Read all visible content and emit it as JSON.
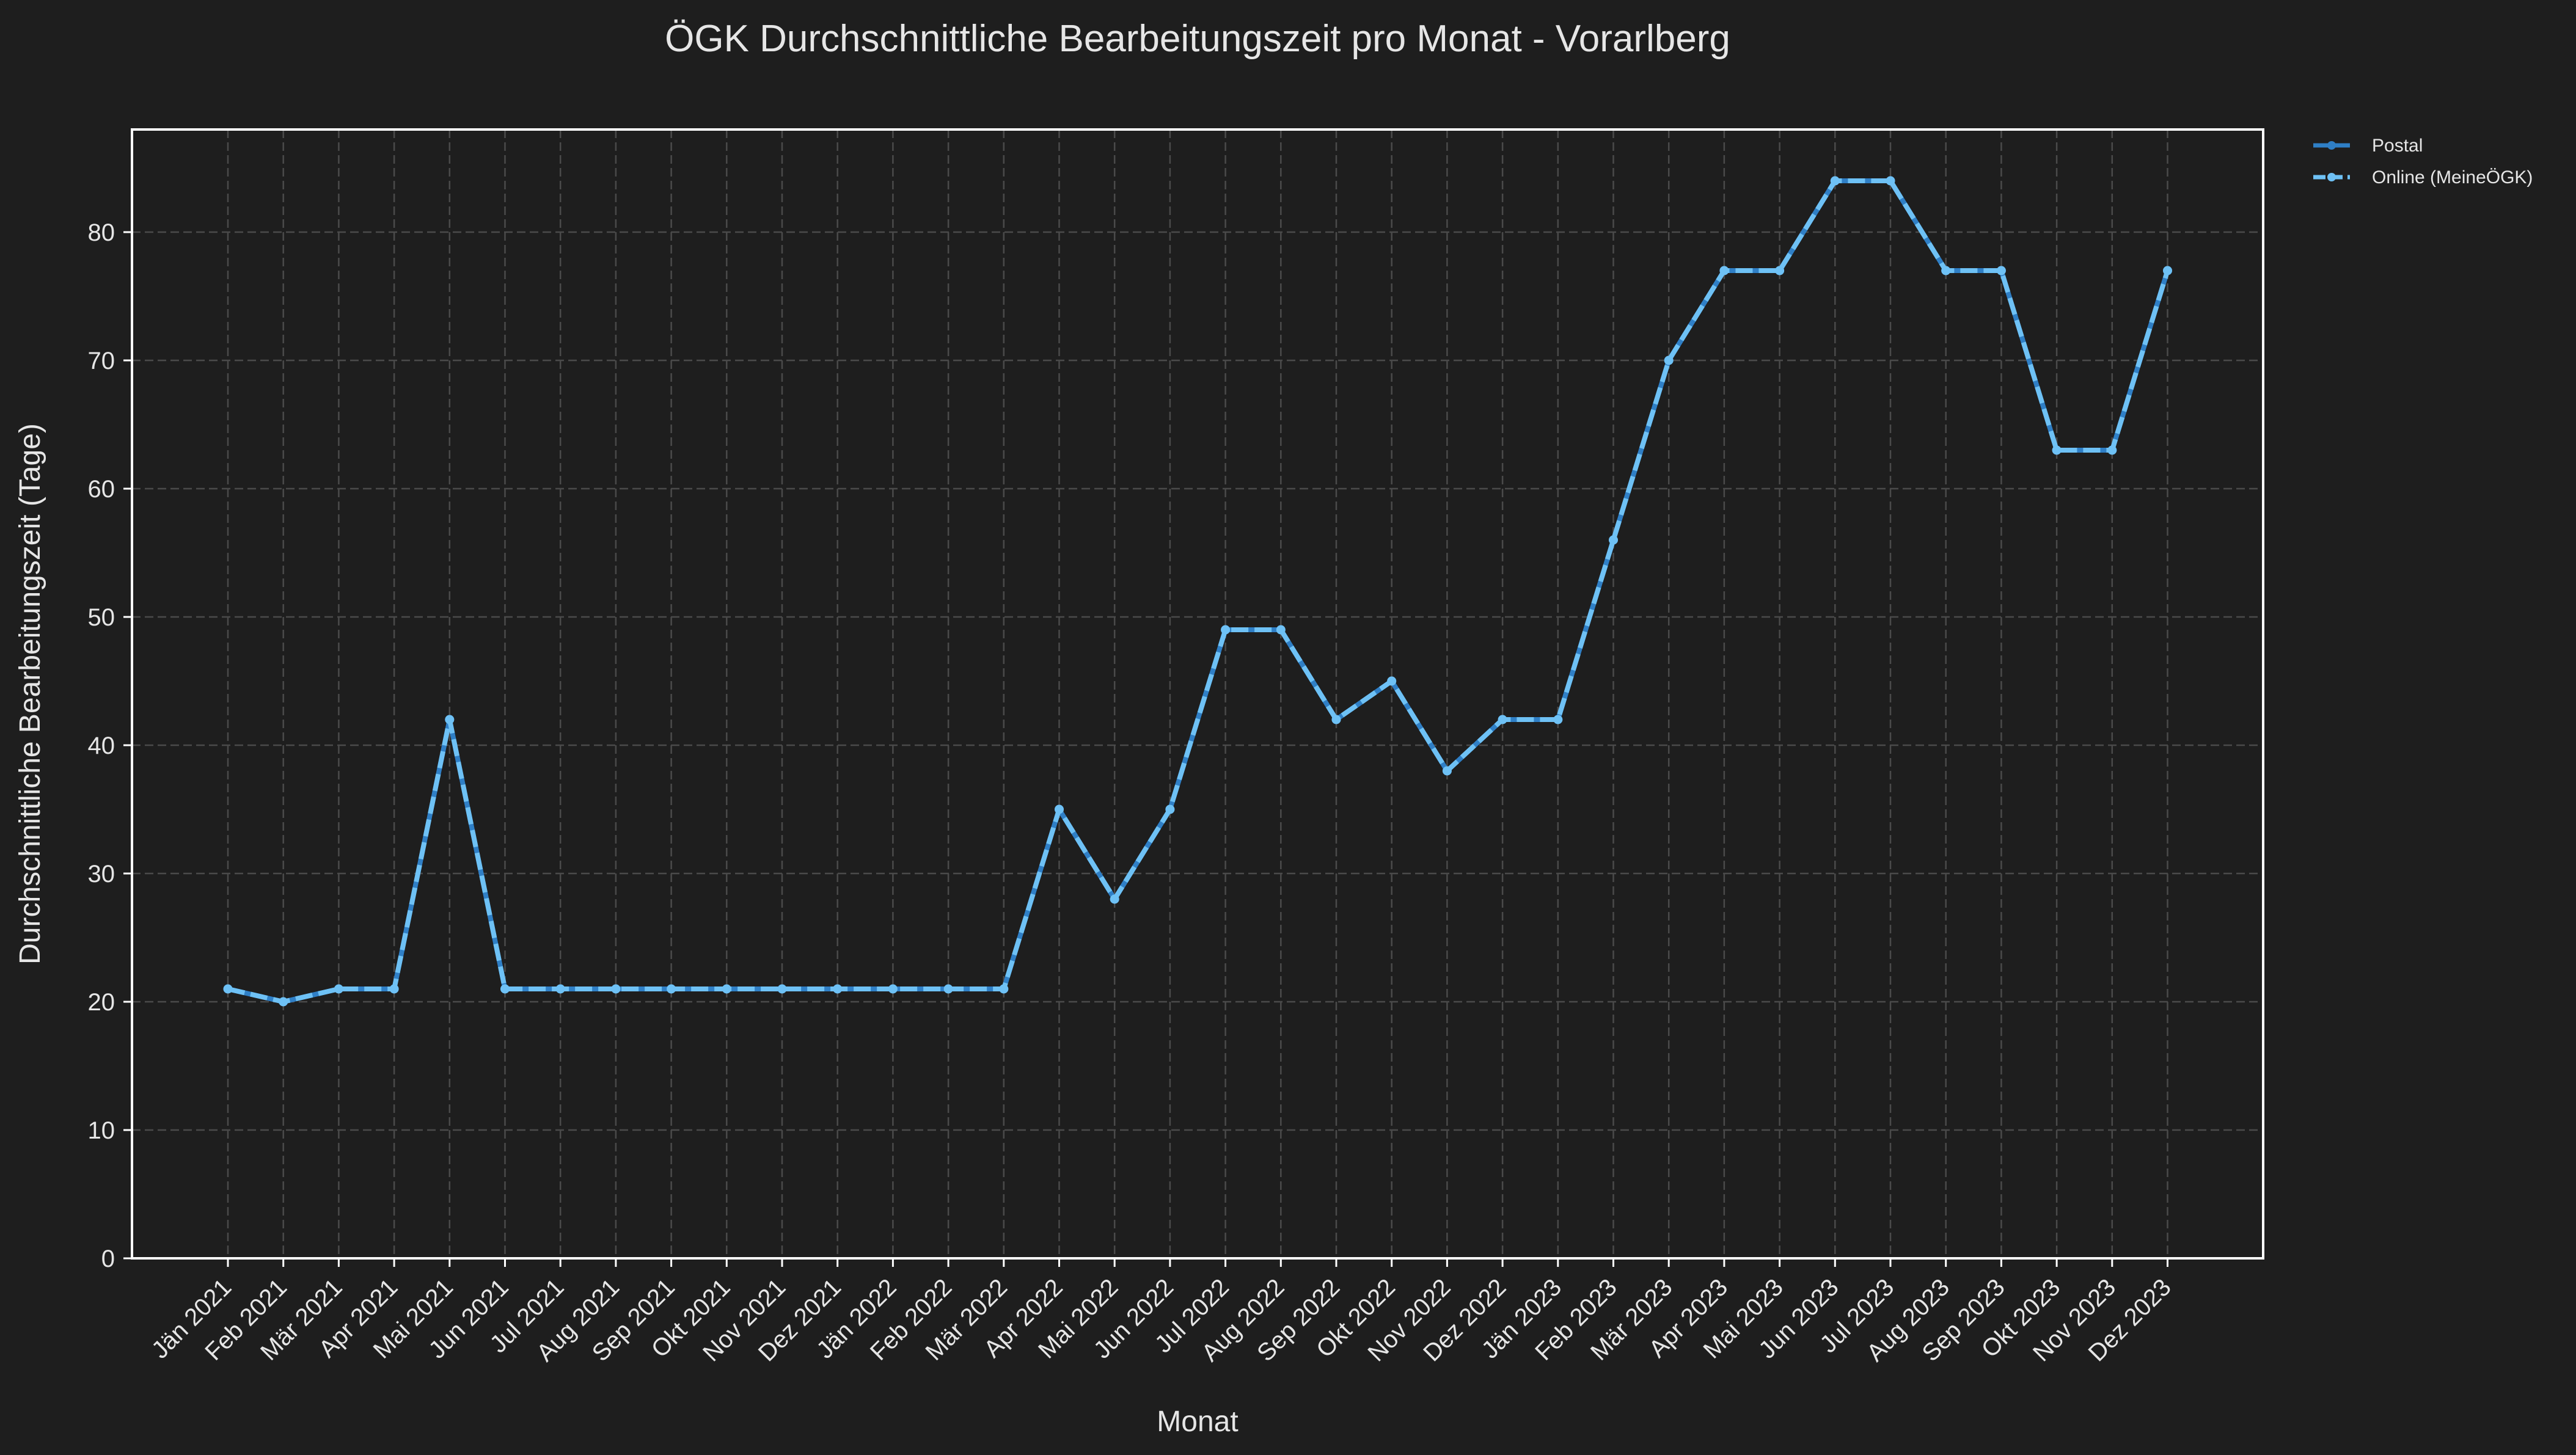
{
  "chart_data": {
    "type": "line",
    "title": "ÖGK Durchschnittliche Bearbeitungszeit pro Monat - Vorarlberg",
    "xlabel": "Monat",
    "ylabel": "Durchschnittliche Bearbeitungszeit (Tage)",
    "ylim": [
      0,
      88
    ],
    "yticks": [
      0,
      10,
      20,
      30,
      40,
      50,
      60,
      70,
      80
    ],
    "grid": true,
    "legend_position": "outside-top-right",
    "categories": [
      "Jän 2021",
      "Feb 2021",
      "Mär 2021",
      "Apr 2021",
      "Mai 2021",
      "Jun 2021",
      "Jul 2021",
      "Aug 2021",
      "Sep 2021",
      "Okt 2021",
      "Nov 2021",
      "Dez 2021",
      "Jän 2022",
      "Feb 2022",
      "Mär 2022",
      "Apr 2022",
      "Mai 2022",
      "Jun 2022",
      "Jul 2022",
      "Aug 2022",
      "Sep 2022",
      "Okt 2022",
      "Nov 2022",
      "Dez 2022",
      "Jän 2023",
      "Feb 2023",
      "Mär 2023",
      "Apr 2023",
      "Mai 2023",
      "Jun 2023",
      "Jul 2023",
      "Aug 2023",
      "Sep 2023",
      "Okt 2023",
      "Nov 2023",
      "Dez 2023"
    ],
    "series": [
      {
        "name": "Postal",
        "color": "#2f7fc6",
        "style": "solid",
        "values": [
          21,
          20,
          21,
          21,
          42,
          21,
          21,
          21,
          21,
          21,
          21,
          21,
          21,
          21,
          21,
          35,
          28,
          35,
          49,
          49,
          42,
          45,
          38,
          42,
          42,
          56,
          70,
          77,
          77,
          84,
          84,
          77,
          77,
          63,
          63,
          77
        ]
      },
      {
        "name": "Online (MeineÖGK)",
        "color": "#6ec1f5",
        "style": "dashed",
        "values": [
          21,
          20,
          21,
          21,
          42,
          21,
          21,
          21,
          21,
          21,
          21,
          21,
          21,
          21,
          21,
          35,
          28,
          35,
          49,
          49,
          42,
          45,
          38,
          42,
          42,
          56,
          70,
          77,
          77,
          84,
          84,
          77,
          77,
          63,
          63,
          77
        ]
      }
    ]
  },
  "colors": {
    "background": "#1e1e1e",
    "grid": "#4a4a4a",
    "axes_frame": "#ffffff",
    "text": "#e6e6e6"
  }
}
